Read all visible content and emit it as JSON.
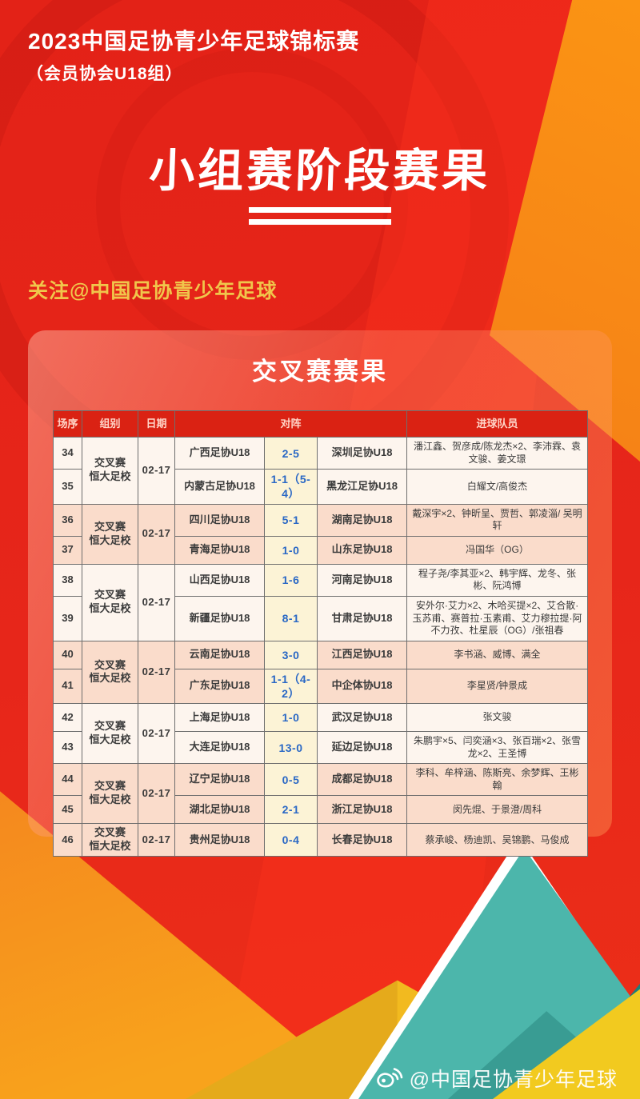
{
  "header": {
    "title": "2023中国足协青少年足球锦标赛",
    "subtitle": "（会员协会U18组）",
    "main_title": "小组赛阶段赛果",
    "follow": "关注@中国足协青少年足球"
  },
  "panel": {
    "title": "交叉赛赛果"
  },
  "table": {
    "columns": [
      "场序",
      "组别",
      "日期",
      "对阵",
      "进球队员"
    ],
    "groups": [
      {
        "group": "交叉赛\n恒大足校",
        "date": "02-17",
        "shade": "light",
        "rows": [
          {
            "no": "34",
            "home": "广西足协U18",
            "score": "2-5",
            "away": "深圳足协U18",
            "scorers": "潘江鑫、贺彦成/陈龙杰×2、李沛霖、袁文骏、姜文璟"
          },
          {
            "no": "35",
            "home": "内蒙古足协U18",
            "score": "1-1（5-4）",
            "away": "黑龙江足协U18",
            "scorers": "白耀文/高俊杰"
          }
        ]
      },
      {
        "group": "交叉赛\n恒大足校",
        "date": "02-17",
        "shade": "peach",
        "rows": [
          {
            "no": "36",
            "home": "四川足协U18",
            "score": "5-1",
            "away": "湖南足协U18",
            "scorers": "戴深宇×2、钟昕呈、贾哲、郭凌淄/ 吴明轩"
          },
          {
            "no": "37",
            "home": "青海足协U18",
            "score": "1-0",
            "away": "山东足协U18",
            "scorers": "冯国华（OG）"
          }
        ]
      },
      {
        "group": "交叉赛\n恒大足校",
        "date": "02-17",
        "shade": "light",
        "rows": [
          {
            "no": "38",
            "home": "山西足协U18",
            "score": "1-6",
            "away": "河南足协U18",
            "scorers": "程子尧/李其亚×2、韩宇辉、龙冬、张彬、阮鸿博"
          },
          {
            "no": "39",
            "home": "新疆足协U18",
            "score": "8-1",
            "away": "甘肃足协U18",
            "scorers": "安外尔·艾力×2、木哈买提×2、艾合散·玉苏甫、赛普拉·玉素甫、艾力穆拉提·阿不力孜、杜星辰（OG）/张祖春"
          }
        ]
      },
      {
        "group": "交叉赛\n恒大足校",
        "date": "02-17",
        "shade": "peach",
        "rows": [
          {
            "no": "40",
            "home": "云南足协U18",
            "score": "3-0",
            "away": "江西足协U18",
            "scorers": "李书涵、威博、满全"
          },
          {
            "no": "41",
            "home": "广东足协U18",
            "score": "1-1（4-2）",
            "away": "中企体协U18",
            "scorers": "李星贤/钟景成"
          }
        ]
      },
      {
        "group": "交叉赛\n恒大足校",
        "date": "02-17",
        "shade": "light",
        "rows": [
          {
            "no": "42",
            "home": "上海足协U18",
            "score": "1-0",
            "away": "武汉足协U18",
            "scorers": "张文骏"
          },
          {
            "no": "43",
            "home": "大连足协U18",
            "score": "13-0",
            "away": "延边足协U18",
            "scorers": "朱鹏宇×5、闫奕涵×3、张百瑞×2、张雪龙×2、王圣博"
          }
        ]
      },
      {
        "group": "交叉赛\n恒大足校",
        "date": "02-17",
        "shade": "peach",
        "rows": [
          {
            "no": "44",
            "home": "辽宁足协U18",
            "score": "0-5",
            "away": "成都足协U18",
            "scorers": "李科、牟梓涵、陈斯亮、余梦辉、王彬翰"
          },
          {
            "no": "45",
            "home": "湖北足协U18",
            "score": "2-1",
            "away": "浙江足协U18",
            "scorers": "闵先焜、于景澄/周科"
          }
        ]
      },
      {
        "group": "交叉赛\n恒大足校",
        "date": "02-17",
        "shade": "peach",
        "rows": [
          {
            "no": "46",
            "home": "贵州足协U18",
            "score": "0-4",
            "away": "长春足协U18",
            "scorers": "蔡承峻、杨迪凯、吴锦鹏、马俊成"
          }
        ]
      }
    ]
  },
  "footer": {
    "watermark": "@中国足协青少年足球",
    "watermark_icon": "weibo-eye-icon"
  },
  "palette": {
    "background_red": "#e7261a",
    "accent_orange": "#f07d1d",
    "follow_gold": "#f0c64b",
    "table_header_red": "#da2213",
    "header_text_pink": "#ffd5c8",
    "score_blue": "#2a68c5",
    "score_bg_cream": "#fcf3d6",
    "row_peach": "#fadccb",
    "row_light": "#fdf5ee",
    "deco_teal": "#35a89f",
    "deco_yellow": "#f2ba1f"
  }
}
